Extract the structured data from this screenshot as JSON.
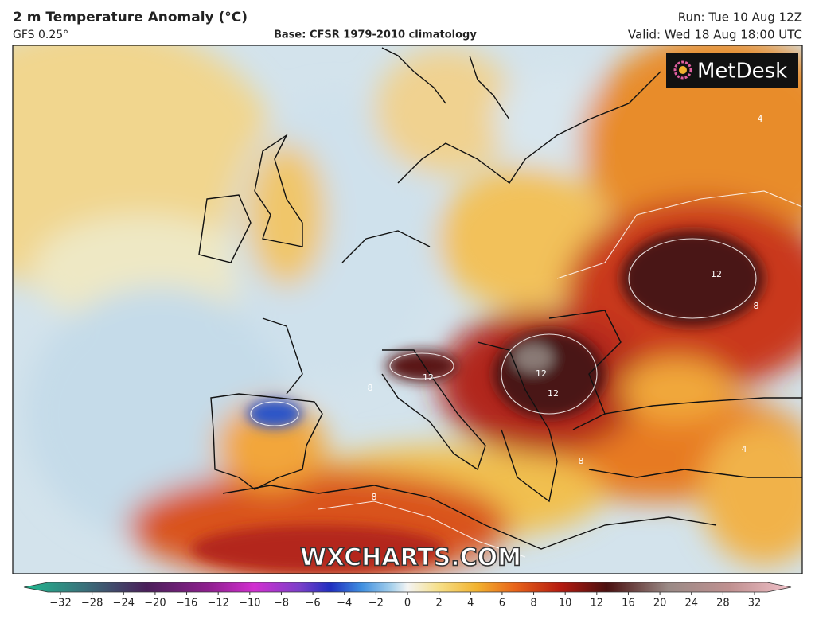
{
  "header": {
    "title": "2 m Temperature Anomaly (°C)",
    "model": "GFS 0.25°",
    "base": "Base: CFSR 1979-2010 climatology",
    "run": "Run: Tue 10 Aug 12Z",
    "valid": "Valid: Wed 18 Aug 18:00 UTC"
  },
  "logo": "MetDesk",
  "watermark": "WXCHARTS.COM",
  "contour_labels": [
    12,
    12,
    12,
    12,
    8,
    8,
    8,
    8,
    4,
    4
  ],
  "colorbar": {
    "ticks": [
      {
        "value": -32,
        "label": "−32"
      },
      {
        "value": -28,
        "label": "−28"
      },
      {
        "value": -24,
        "label": "−24"
      },
      {
        "value": -20,
        "label": "−20"
      },
      {
        "value": -16,
        "label": "−16"
      },
      {
        "value": -12,
        "label": "−12"
      },
      {
        "value": -10,
        "label": "−10"
      },
      {
        "value": -8,
        "label": "−8"
      },
      {
        "value": -6,
        "label": "−6"
      },
      {
        "value": -4,
        "label": "−4"
      },
      {
        "value": -2,
        "label": "−2"
      },
      0,
      2,
      4,
      6,
      8,
      10,
      12,
      16,
      20,
      24,
      28,
      32
    ]
  }
}
